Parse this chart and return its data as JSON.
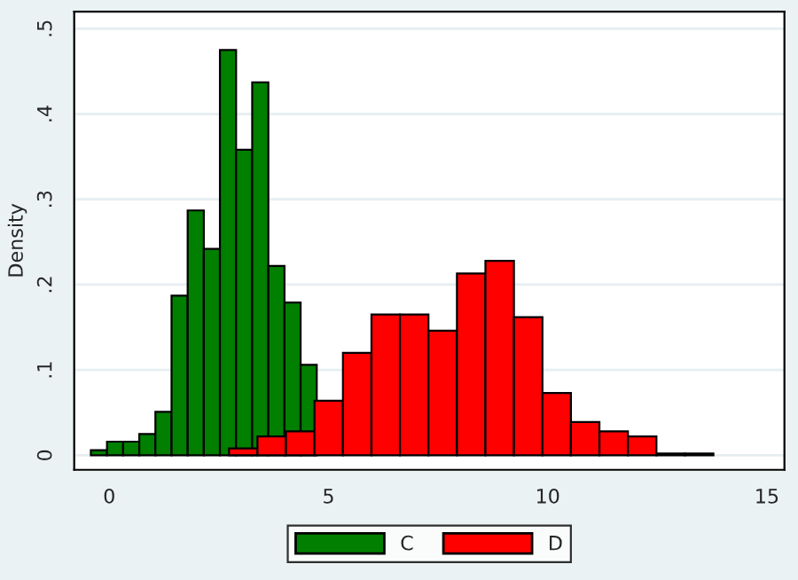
{
  "chart_data": {
    "type": "bar",
    "ylabel": "Density",
    "series": [
      {
        "name": "C",
        "color": "#007f00",
        "x": [
          -0.236,
          0.132,
          0.5,
          0.868,
          1.236,
          1.604,
          1.972,
          2.34,
          2.708,
          3.076,
          3.444,
          3.812,
          4.18,
          4.548
        ],
        "values": [
          0.006,
          0.016,
          0.016,
          0.025,
          0.051,
          0.187,
          0.287,
          0.242,
          0.475,
          0.358,
          0.437,
          0.222,
          0.179,
          0.106
        ]
      },
      {
        "name": "D",
        "color": "#ff0000",
        "x": [
          3.055,
          3.705,
          4.355,
          5.005,
          5.655,
          6.305,
          6.955,
          7.605,
          8.255,
          8.905,
          9.555,
          10.205,
          10.855,
          11.505,
          12.155,
          12.805,
          13.455
        ],
        "values": [
          0.008,
          0.022,
          0.028,
          0.064,
          0.12,
          0.165,
          0.165,
          0.146,
          0.213,
          0.228,
          0.162,
          0.073,
          0.039,
          0.028,
          0.022,
          0.002,
          0.002
        ]
      }
    ],
    "xlim": [
      -0.8,
      15.4
    ],
    "xticks": [
      0,
      5,
      10,
      15
    ],
    "ylim": [
      -0.017,
      0.52
    ],
    "yticks": [
      {
        "value": 0,
        "label": "0"
      },
      {
        "value": 0.1,
        "label": ".1"
      },
      {
        "value": 0.2,
        "label": ".2"
      },
      {
        "value": 0.3,
        "label": ".3"
      },
      {
        "value": 0.4,
        "label": ".4"
      },
      {
        "value": 0.5,
        "label": ".5"
      }
    ],
    "grid": "y",
    "legend": "bottom"
  }
}
